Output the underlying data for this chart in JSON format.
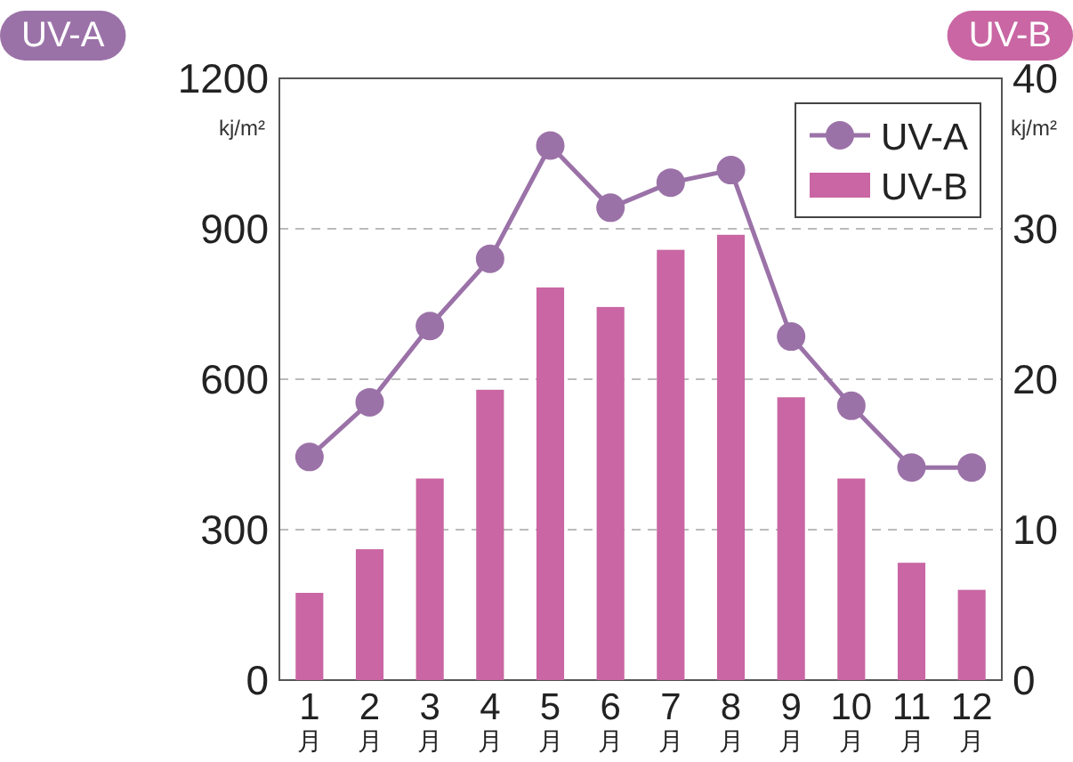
{
  "chart_data": {
    "type": "bar",
    "ylabel": "UV-A",
    "y2label": "UV-B",
    "annotations": [
      "kj/m²",
      "kj/m²"
    ],
    "categories": [
      "1\n月",
      "2\n月",
      "3\n月",
      "4\n月",
      "5\n月",
      "6\n月",
      "7\n月",
      "8\n月",
      "9\n月",
      "10\n月",
      "11\n月",
      "12\n月"
    ],
    "series": [
      {
        "name": "UV-A",
        "type": "line",
        "color": "#9b72a8",
        "marker": "circle",
        "values": [
          445,
          554,
          706,
          840,
          1066,
          942,
          992,
          1017,
          685,
          547,
          424,
          424
        ]
      },
      {
        "name": "UV-B",
        "axis": "y2",
        "color": "#c966a3",
        "values": [
          5.8,
          8.7,
          13.4,
          19.3,
          26.1,
          24.8,
          28.6,
          29.6,
          18.8,
          13.4,
          7.8,
          6.0
        ]
      }
    ],
    "ylim": [
      0,
      1200
    ],
    "yticks": [
      0,
      300,
      600,
      900,
      1200
    ],
    "y2lim": [
      0,
      40
    ],
    "y2ticks": [
      0,
      10,
      20,
      30,
      40
    ],
    "grid": "y",
    "legend": "top right"
  }
}
